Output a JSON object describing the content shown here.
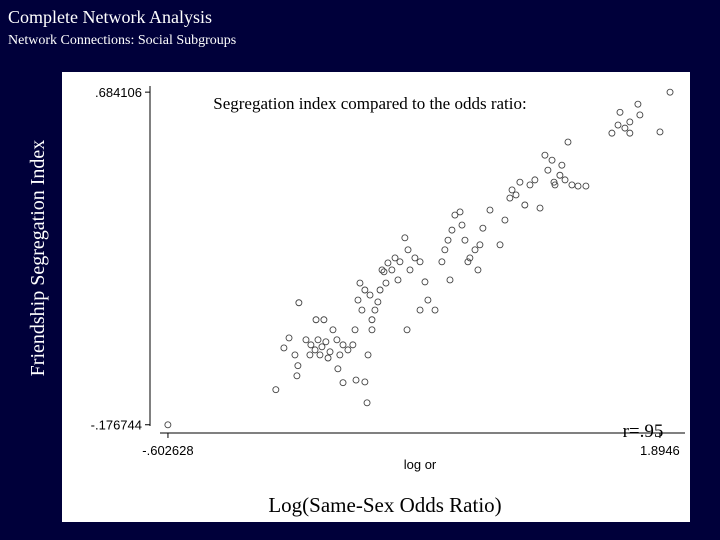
{
  "slide": {
    "title": "Complete Network Analysis",
    "subtitle": "Network Connections: Social Subgroups",
    "y_caption": "Friendship Segregation Index",
    "x_caption": "Log(Same-Sex Odds Ratio)"
  },
  "chart_data": {
    "type": "scatter",
    "title": "Segregation index compared to the odds ratio:",
    "xlabel": "log or",
    "annotation": "r=.95",
    "marker_color": "#444444",
    "xlim": [
      -0.643,
      2.022
    ],
    "ylim": [
      -0.18,
      0.7
    ],
    "xticks": [
      {
        "value": -0.602628,
        "label": "-.602628"
      },
      {
        "value": 1.8946,
        "label": "1.8946"
      }
    ],
    "yticks": [
      {
        "value": -0.176744,
        "label": "-.176744"
      },
      {
        "value": 0.684106,
        "label": ".684106"
      }
    ],
    "x": [
      -0.603,
      -0.055,
      0.062,
      0.012,
      -0.014,
      0.042,
      0.057,
      0.052,
      0.098,
      0.123,
      0.144,
      0.159,
      0.179,
      0.199,
      0.22,
      0.118,
      0.169,
      0.21,
      0.149,
      0.189,
      0.235,
      0.255,
      0.27,
      0.286,
      0.311,
      0.26,
      0.286,
      0.336,
      0.347,
      0.362,
      0.372,
      0.397,
      0.382,
      0.423,
      0.433,
      0.448,
      0.463,
      0.474,
      0.494,
      0.504,
      0.484,
      0.514,
      0.534,
      0.55,
      0.575,
      0.565,
      0.6,
      0.616,
      0.626,
      0.651,
      0.677,
      0.677,
      0.702,
      0.717,
      0.611,
      0.433,
      0.413,
      0.397,
      0.408,
      0.352,
      0.788,
      0.803,
      0.819,
      0.839,
      0.854,
      0.88,
      0.89,
      0.905,
      0.92,
      0.93,
      0.956,
      0.981,
      0.971,
      0.996,
      1.032,
      0.829,
      0.753,
      1.108,
      1.133,
      1.144,
      1.164,
      1.184,
      1.209,
      1.235,
      1.26,
      1.286,
      1.311,
      1.326,
      1.347,
      1.362,
      1.387,
      1.397,
      1.413,
      1.428,
      1.448,
      1.479,
      1.519,
      1.692,
      1.717,
      1.742,
      1.783,
      1.793,
      1.895,
      1.946,
      1.682,
      1.651,
      1.742,
      1.083,
      1.357
    ],
    "y": [
      -0.177,
      -0.086,
      0.139,
      0.048,
      0.022,
      0.004,
      -0.024,
      -0.05,
      0.043,
      0.03,
      0.017,
      0.043,
      0.025,
      0.038,
      0.012,
      0.004,
      0.004,
      -0.004,
      0.095,
      0.095,
      0.069,
      0.043,
      0.004,
      0.03,
      0.017,
      -0.032,
      -0.068,
      0.03,
      0.069,
      0.146,
      0.19,
      0.172,
      0.12,
      0.159,
      0.095,
      0.12,
      0.141,
      0.172,
      0.219,
      0.19,
      0.224,
      0.242,
      0.224,
      0.255,
      0.245,
      0.198,
      0.307,
      0.276,
      0.224,
      0.255,
      0.245,
      0.12,
      0.193,
      0.146,
      0.069,
      0.069,
      0.004,
      -0.066,
      -0.12,
      -0.061,
      0.245,
      0.276,
      0.301,
      0.327,
      0.366,
      0.374,
      0.34,
      0.301,
      0.245,
      0.255,
      0.276,
      0.289,
      0.224,
      0.332,
      0.379,
      0.198,
      0.12,
      0.353,
      0.41,
      0.431,
      0.418,
      0.451,
      0.392,
      0.444,
      0.457,
      0.384,
      0.521,
      0.482,
      0.508,
      0.444,
      0.469,
      0.495,
      0.457,
      0.555,
      0.444,
      0.441,
      0.441,
      0.632,
      0.591,
      0.607,
      0.653,
      0.625,
      0.581,
      0.684,
      0.599,
      0.578,
      0.578,
      0.289,
      0.451
    ]
  }
}
